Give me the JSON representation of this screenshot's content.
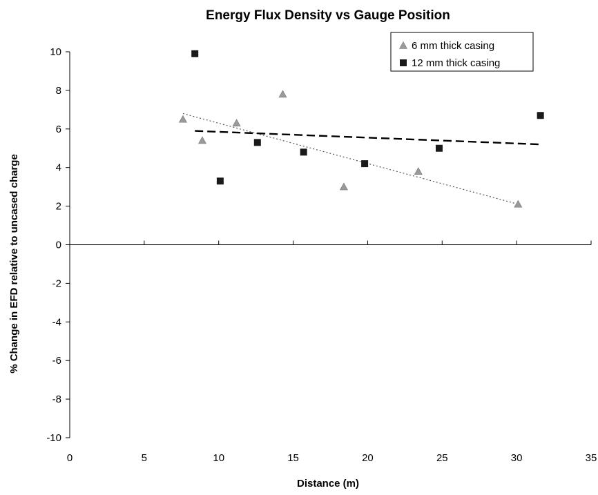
{
  "chart_data": {
    "type": "scatter",
    "title": "Energy Flux Density vs Gauge Position",
    "xlabel": "Distance  (m)",
    "ylabel": "% Change in EFD relative to uncased charge",
    "xlim": [
      0,
      35
    ],
    "ylim": [
      -10,
      10
    ],
    "x_ticks": [
      "0",
      "5",
      "10",
      "15",
      "20",
      "25",
      "30",
      "35"
    ],
    "y_ticks": [
      "10",
      "8",
      "6",
      "4",
      "2",
      "0",
      "-2",
      "-4",
      "-6",
      "-8",
      "-10"
    ],
    "grid": false,
    "legend_position": "top-right",
    "series": [
      {
        "name": "6 mm thick casing",
        "marker": "triangle",
        "color": "#9a9a9a",
        "trendline_style": "dotted",
        "points": [
          {
            "x": 7.6,
            "y": 6.5
          },
          {
            "x": 8.9,
            "y": 5.4
          },
          {
            "x": 11.2,
            "y": 6.3
          },
          {
            "x": 14.3,
            "y": 7.8
          },
          {
            "x": 18.4,
            "y": 3.0
          },
          {
            "x": 23.4,
            "y": 3.8
          },
          {
            "x": 30.1,
            "y": 2.1
          }
        ],
        "trendline": {
          "x": [
            7.6,
            30.1
          ],
          "y": [
            6.8,
            2.1
          ]
        }
      },
      {
        "name": "12 mm thick casing",
        "marker": "square",
        "color": "#1a1a1a",
        "trendline_style": "dashed",
        "points": [
          {
            "x": 8.4,
            "y": 9.9
          },
          {
            "x": 10.1,
            "y": 3.3
          },
          {
            "x": 12.6,
            "y": 5.3
          },
          {
            "x": 15.7,
            "y": 4.8
          },
          {
            "x": 19.8,
            "y": 4.2
          },
          {
            "x": 24.8,
            "y": 5.0
          },
          {
            "x": 31.6,
            "y": 6.7
          }
        ],
        "trendline": {
          "x": [
            8.4,
            31.6
          ],
          "y": [
            5.9,
            5.2
          ]
        }
      }
    ]
  }
}
